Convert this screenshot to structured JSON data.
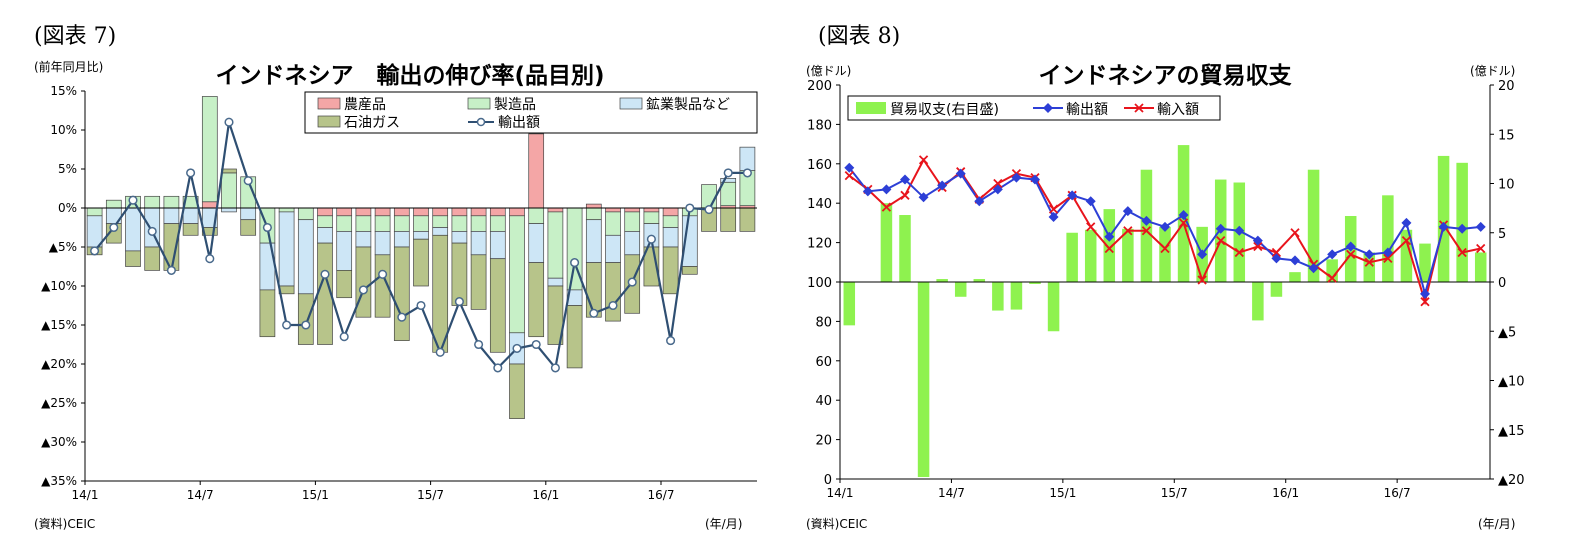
{
  "left": {
    "figure_label": "(図表 7)",
    "unit_label": "(前年同月比)",
    "source": "(資料)CEIC",
    "xunit": "(年/月)",
    "chart_data": {
      "type": "bar",
      "stacked": true,
      "title": "インドネシア　輸出の伸び率(品目別)",
      "categories": [
        "14/1",
        "14/2",
        "14/3",
        "14/4",
        "14/5",
        "14/6",
        "14/7",
        "14/8",
        "14/9",
        "14/10",
        "14/11",
        "14/12",
        "15/1",
        "15/2",
        "15/3",
        "15/4",
        "15/5",
        "15/6",
        "15/7",
        "15/8",
        "15/9",
        "15/10",
        "15/11",
        "15/12",
        "16/1",
        "16/2",
        "16/3",
        "16/4",
        "16/5",
        "16/6",
        "16/7",
        "16/8",
        "16/9",
        "16/10",
        "16/11"
      ],
      "x_tick_labels": [
        {
          "index": 0,
          "label": "14/1"
        },
        {
          "index": 6,
          "label": "14/7"
        },
        {
          "index": 12,
          "label": "15/1"
        },
        {
          "index": 18,
          "label": "15/7"
        },
        {
          "index": 24,
          "label": "16/1"
        },
        {
          "index": 30,
          "label": "16/7"
        }
      ],
      "ylim": [
        -35,
        15
      ],
      "yticks": [
        15,
        10,
        5,
        0,
        -5,
        -10,
        -15,
        -20,
        -25,
        -30,
        -35
      ],
      "ytick_labels": [
        "15%",
        "10%",
        "5%",
        "0%",
        "▲5%",
        "▲10%",
        "▲15%",
        "▲20%",
        "▲25%",
        "▲30%",
        "▲35%"
      ],
      "legend": "top-right",
      "series": [
        {
          "name": "農産品",
          "kind": "bar",
          "color": "#f4a6a6",
          "values": [
            0,
            0,
            0,
            0,
            0,
            0,
            0.8,
            0,
            0,
            0,
            0,
            0,
            -1,
            -1,
            -1,
            -1,
            -1,
            -1,
            -1,
            -1,
            -1,
            -1,
            -1,
            9.5,
            -0.5,
            0,
            0.5,
            -0.5,
            -0.5,
            -0.5,
            -1,
            0,
            0,
            0.3,
            0.3
          ]
        },
        {
          "name": "製造品",
          "kind": "bar",
          "color": "#c7f0c7",
          "values": [
            -1,
            1,
            1.5,
            1.5,
            1.5,
            1.5,
            13.5,
            4.5,
            4,
            -4.5,
            -0.5,
            -1.5,
            -1.5,
            -2,
            -2,
            -2,
            -2,
            -2,
            -1.5,
            -2,
            -2,
            -2,
            -15,
            -2,
            -8.5,
            -10.5,
            -1.5,
            -3,
            -2.5,
            -1.5,
            -1.5,
            -1,
            3,
            3,
            4.5
          ]
        },
        {
          "name": "鉱業製品など",
          "kind": "bar",
          "color": "#cde6f6",
          "values": [
            -4,
            -2,
            -5.5,
            -5,
            -2,
            -2,
            -2.5,
            -0.5,
            -1.5,
            -6,
            -9.5,
            -9.5,
            -2,
            -5,
            -2,
            -3,
            -2,
            -1,
            -1,
            -1.5,
            -3,
            -3.5,
            -4,
            -5,
            -1,
            -2,
            -5.5,
            -3.5,
            -3,
            -3,
            -2.5,
            -6.5,
            0,
            0.5,
            3
          ]
        },
        {
          "name": "石油ガス",
          "kind": "bar",
          "color": "#b7c48a",
          "values": [
            -1,
            -2.5,
            -2,
            -3,
            -6,
            -1.5,
            -1,
            0.5,
            -2,
            -6,
            -1,
            -6.5,
            -13,
            -3.5,
            -9,
            -8,
            -12,
            -6,
            -15,
            -8,
            -7,
            -12,
            -7,
            -9.5,
            -7.5,
            -8,
            -7,
            -7.5,
            -7.5,
            -5,
            -6,
            -1,
            -3,
            -3,
            -3
          ]
        },
        {
          "name": "輸出額",
          "kind": "line",
          "color": "#2f4f72",
          "values": [
            -5.5,
            -2.5,
            1,
            -3,
            -8,
            4.5,
            -6.5,
            11,
            3.5,
            -2.5,
            -15,
            -15,
            -8.5,
            -16.5,
            -10.5,
            -8.5,
            -14,
            -12.5,
            -18.5,
            -12,
            -17.5,
            -20.5,
            -18,
            -17.5,
            -20.5,
            -7,
            -13.5,
            -12.5,
            -9.5,
            -4,
            -17,
            0,
            -0.2,
            4.5,
            4.5
          ]
        }
      ]
    }
  },
  "right": {
    "figure_label": "(図表 8)",
    "unit_left": "(億ドル)",
    "unit_right": "(億ドル)",
    "source": "(資料)CEIC",
    "xunit": "(年/月)",
    "chart_data": {
      "type": "bar+line",
      "title": "インドネシアの貿易収支",
      "categories": [
        "14/1",
        "14/2",
        "14/3",
        "14/4",
        "14/5",
        "14/6",
        "14/7",
        "14/8",
        "14/9",
        "14/10",
        "14/11",
        "14/12",
        "15/1",
        "15/2",
        "15/3",
        "15/4",
        "15/5",
        "15/6",
        "15/7",
        "15/8",
        "15/9",
        "15/10",
        "15/11",
        "15/12",
        "16/1",
        "16/2",
        "16/3",
        "16/4",
        "16/5",
        "16/6",
        "16/7",
        "16/8",
        "16/9",
        "16/10",
        "16/11"
      ],
      "x_tick_labels": [
        {
          "index": 0,
          "label": "14/1"
        },
        {
          "index": 6,
          "label": "14/7"
        },
        {
          "index": 12,
          "label": "15/1"
        },
        {
          "index": 18,
          "label": "15/7"
        },
        {
          "index": 24,
          "label": "16/1"
        },
        {
          "index": 30,
          "label": "16/7"
        }
      ],
      "ylim_left": [
        0,
        200
      ],
      "yticks_left": [
        "200",
        "180",
        "160",
        "140",
        "120",
        "100",
        "80",
        "60",
        "40",
        "20",
        "0"
      ],
      "ylim_right": [
        -20,
        20
      ],
      "yticks_right": [
        "20",
        "15",
        "10",
        "5",
        "0",
        "▲5",
        "▲10",
        "▲15",
        "▲20"
      ],
      "legend": "top-left",
      "series": [
        {
          "name": "貿易収支(右目盛)",
          "kind": "bar",
          "axis": "right",
          "color": "#8ef24f",
          "values": [
            -4.4,
            0,
            8,
            6.8,
            -19.8,
            0.3,
            -1.5,
            0.3,
            -2.9,
            -2.8,
            -0.2,
            -5,
            5,
            5.3,
            7.4,
            5.4,
            11.4,
            5.6,
            13.9,
            5.6,
            10.4,
            10.1,
            -3.9,
            -1.5,
            1,
            11.4,
            2.3,
            6.7,
            3,
            8.8,
            5.3,
            3.9,
            12.8,
            12.1,
            3
          ]
        },
        {
          "name": "輸出額",
          "kind": "line",
          "axis": "left",
          "color": "#2d3fd6",
          "values": [
            158,
            146,
            147,
            152,
            143,
            149,
            155,
            141,
            147,
            153,
            152,
            133,
            144,
            141,
            123,
            136,
            131,
            128,
            134,
            114,
            127,
            126,
            121,
            112,
            111,
            107,
            114,
            118,
            114,
            115,
            130,
            94,
            128,
            127,
            128
          ]
        },
        {
          "name": "輸入額",
          "kind": "line",
          "axis": "left",
          "color": "#e8141c",
          "values": [
            154,
            147,
            138,
            144,
            162,
            148,
            156,
            142,
            150,
            155,
            153,
            137,
            144,
            128,
            117,
            126,
            126,
            117,
            130,
            101,
            121,
            115,
            118,
            115,
            125,
            109,
            102,
            114,
            110,
            112,
            121,
            90,
            129,
            115,
            117
          ]
        }
      ]
    }
  }
}
